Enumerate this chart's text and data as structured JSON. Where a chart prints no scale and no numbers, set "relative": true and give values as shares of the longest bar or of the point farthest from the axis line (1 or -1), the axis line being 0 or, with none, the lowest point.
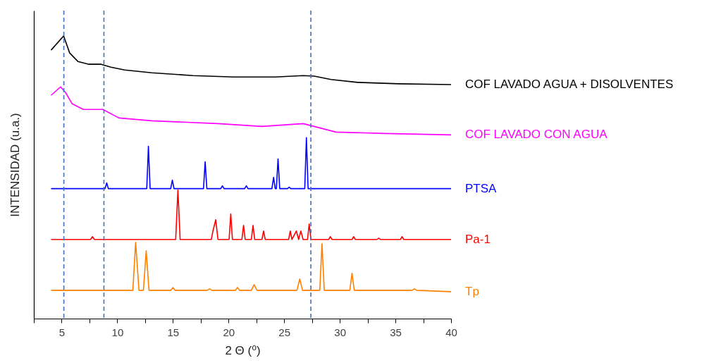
{
  "chart_data": {
    "type": "line",
    "relative": true,
    "xlabel": "2 Θ (⁰)",
    "ylabel": "INTENSIDAD (u.a.)",
    "xlim": [
      2.5,
      40
    ],
    "xticks": [
      {
        "value": 2.5,
        "label": null
      },
      5,
      {
        "value": 7.5,
        "label": null
      },
      10,
      {
        "value": 12.5,
        "label": null
      },
      15,
      {
        "value": 17.5,
        "label": null
      },
      20,
      {
        "value": 22.5,
        "label": null
      },
      25,
      {
        "value": 27.5,
        "label": null
      },
      30,
      {
        "value": 32.5,
        "label": null
      },
      35,
      {
        "value": 37.5,
        "label": null
      },
      40
    ],
    "legend": false,
    "marker": "none",
    "series": [
      {
        "name": "COF LAVADO AGUA + DISOLVENTES",
        "color": "#000000",
        "x": [
          4.05,
          5.18,
          5.72,
          6.46,
          7.45,
          8.55,
          9.42,
          10.65,
          13.1,
          16.8,
          20.5,
          24.2,
          26.7,
          27.7,
          29.2,
          31.6,
          35.3,
          40
        ],
        "values": [
          0.95,
          1.0,
          0.94,
          0.91,
          0.9,
          0.9,
          0.89,
          0.88,
          0.87,
          0.86,
          0.855,
          0.855,
          0.86,
          0.858,
          0.846,
          0.836,
          0.831,
          0.828
        ]
      },
      {
        "name": "COF LAVADO CON AGUA",
        "color": "#ff00ff",
        "x": [
          4.05,
          4.9,
          5.35,
          5.95,
          6.95,
          8.7,
          10.15,
          13.1,
          19.05,
          23.0,
          26.7,
          27.7,
          29.65,
          34.1,
          40
        ],
        "values": [
          0.79,
          0.82,
          0.8,
          0.76,
          0.74,
          0.74,
          0.71,
          0.7,
          0.69,
          0.68,
          0.69,
          0.68,
          0.66,
          0.655,
          0.65
        ]
      },
      {
        "name": "PTSA",
        "color": "#0000ff",
        "x": [
          4.05,
          8.9,
          9.05,
          9.2,
          12.65,
          12.8,
          12.95,
          14.8,
          14.95,
          15.1,
          17.75,
          17.9,
          18.05,
          19.3,
          19.45,
          19.6,
          21.45,
          21.6,
          21.75,
          23.9,
          24.05,
          24.2,
          24.3,
          24.45,
          24.6,
          25.3,
          25.45,
          25.6,
          26.85,
          27.0,
          27.15,
          40
        ],
        "values": [
          0.46,
          0.46,
          0.48,
          0.46,
          0.46,
          0.61,
          0.46,
          0.46,
          0.49,
          0.46,
          0.46,
          0.555,
          0.46,
          0.46,
          0.47,
          0.46,
          0.46,
          0.47,
          0.46,
          0.46,
          0.5,
          0.46,
          0.46,
          0.565,
          0.46,
          0.46,
          0.465,
          0.46,
          0.46,
          0.64,
          0.46,
          0.46
        ]
      },
      {
        "name": "Pa-1",
        "color": "#ff0000",
        "x": [
          4.05,
          7.6,
          7.77,
          7.95,
          15.25,
          15.45,
          15.65,
          18.45,
          18.6,
          18.85,
          19.05,
          20.05,
          20.2,
          20.35,
          21.2,
          21.35,
          21.5,
          22.05,
          22.2,
          22.35,
          23.0,
          23.15,
          23.3,
          25.4,
          25.55,
          25.7,
          26.1,
          26.3,
          26.5,
          26.7,
          27.1,
          27.25,
          27.4,
          29.0,
          29.15,
          29.3,
          31.1,
          31.25,
          31.4,
          33.35,
          33.5,
          33.65,
          35.45,
          35.6,
          35.75,
          40
        ],
        "values": [
          0.28,
          0.28,
          0.29,
          0.28,
          0.28,
          0.455,
          0.28,
          0.28,
          0.31,
          0.35,
          0.28,
          0.28,
          0.37,
          0.28,
          0.28,
          0.33,
          0.28,
          0.28,
          0.33,
          0.28,
          0.28,
          0.31,
          0.28,
          0.28,
          0.31,
          0.28,
          0.31,
          0.28,
          0.31,
          0.28,
          0.28,
          0.335,
          0.28,
          0.28,
          0.29,
          0.28,
          0.28,
          0.29,
          0.28,
          0.28,
          0.285,
          0.28,
          0.28,
          0.29,
          0.28,
          0.28
        ]
      },
      {
        "name": "Tp",
        "color": "#ff8000",
        "x": [
          4.05,
          11.4,
          11.65,
          11.95,
          12.35,
          12.6,
          12.85,
          14.8,
          15.0,
          15.2,
          18.1,
          18.3,
          18.5,
          20.6,
          20.8,
          21.0,
          22.05,
          22.3,
          22.55,
          26.15,
          26.4,
          26.65,
          28.2,
          28.4,
          28.6,
          30.9,
          31.1,
          31.3,
          36.5,
          36.7,
          36.9,
          40
        ],
        "values": [
          0.1,
          0.1,
          0.27,
          0.1,
          0.1,
          0.24,
          0.1,
          0.1,
          0.11,
          0.1,
          0.1,
          0.105,
          0.1,
          0.1,
          0.11,
          0.1,
          0.1,
          0.12,
          0.1,
          0.1,
          0.14,
          0.1,
          0.1,
          0.265,
          0.1,
          0.1,
          0.16,
          0.1,
          0.1,
          0.105,
          0.1,
          0.095
        ]
      }
    ],
    "ref_lines": [
      {
        "axis": "x",
        "value": 5.2,
        "color": "#4472c4",
        "line_style": "dashed"
      },
      {
        "axis": "x",
        "value": 8.8,
        "color": "#4472c4",
        "line_style": "dashed"
      },
      {
        "axis": "x",
        "value": 27.4,
        "color": "#4472c4",
        "line_style": "dashed"
      }
    ]
  }
}
